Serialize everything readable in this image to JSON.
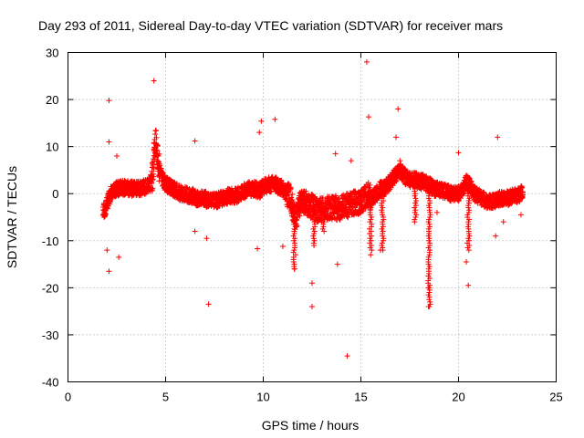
{
  "chart_data": {
    "type": "scatter",
    "title": "Day 293 of 2011, Sidereal Day-to-day VTEC variation (SDTVAR) for receiver mars",
    "xlabel": "GPS time / hours",
    "ylabel": "SDTVAR / TECUs",
    "xlim": [
      0,
      25
    ],
    "ylim": [
      -40,
      30
    ],
    "xticks": [
      0,
      5,
      10,
      15,
      20,
      25
    ],
    "yticks": [
      30,
      20,
      10,
      0,
      -10,
      -20,
      -30,
      -40
    ],
    "grid": true,
    "marker": "+",
    "color": "#ff0000",
    "series": [
      {
        "name": "SDTVAR",
        "x": [
          1.8,
          1.9,
          2.0,
          2.1,
          2.2,
          2.3,
          2.4,
          2.5,
          2.6,
          2.7,
          2.8,
          3.0,
          3.2,
          3.4,
          3.6,
          3.8,
          4.0,
          4.2,
          4.35,
          4.4,
          4.45,
          4.5,
          4.55,
          4.6,
          4.7,
          4.8,
          4.9,
          5.0,
          5.2,
          5.4,
          5.6,
          5.8,
          6.0,
          6.2,
          6.4,
          6.6,
          6.8,
          7.0,
          7.2,
          7.4,
          7.6,
          7.8,
          8.0,
          8.2,
          8.4,
          8.6,
          8.8,
          9.0,
          9.2,
          9.4,
          9.6,
          9.8,
          10.0,
          10.2,
          10.4,
          10.6,
          10.8,
          11.0,
          11.2,
          11.4,
          11.5,
          11.6,
          11.7,
          11.8,
          11.9,
          12.0,
          12.2,
          12.4,
          12.6,
          12.8,
          13.0,
          13.2,
          13.4,
          13.6,
          13.8,
          14.0,
          14.2,
          14.4,
          14.6,
          14.8,
          15.0,
          15.2,
          15.4,
          15.5,
          15.6,
          15.8,
          16.0,
          16.2,
          16.4,
          16.6,
          16.8,
          17.0,
          17.2,
          17.4,
          17.6,
          17.8,
          18.0,
          18.2,
          18.4,
          18.5,
          18.6,
          18.8,
          19.0,
          19.2,
          19.4,
          19.6,
          19.8,
          20.0,
          20.2,
          20.4,
          20.6,
          20.8,
          21.0,
          21.2,
          21.4,
          21.6,
          21.8,
          22.0,
          22.2,
          22.4,
          22.6,
          22.8,
          23.0,
          23.2,
          23.3
        ],
        "y": [
          -3,
          -4,
          -2,
          -1,
          0,
          0.5,
          0.8,
          1,
          1.2,
          1.2,
          1.3,
          1.2,
          1.1,
          1,
          1,
          1.2,
          1.5,
          2,
          4,
          8,
          10,
          11,
          9,
          7,
          5,
          3.5,
          2.5,
          2,
          1.5,
          1,
          0.5,
          0,
          0,
          -0.5,
          -0.5,
          -1,
          -1,
          -1,
          -1.5,
          -1.5,
          -1.5,
          -1,
          -1,
          -0.5,
          -0.5,
          -0.5,
          0,
          0.5,
          1,
          1,
          1,
          0.5,
          1.5,
          1.8,
          2,
          2,
          1.5,
          1,
          0,
          -1,
          -3,
          -5,
          -5,
          -3,
          -2,
          -2,
          -2,
          -2.5,
          -3,
          -3.5,
          -3.5,
          -3.5,
          -3,
          -3,
          -3,
          -3,
          -2.5,
          -2.5,
          -2,
          -2,
          -1.5,
          -1,
          0,
          -1,
          -1,
          0,
          1,
          1,
          2,
          3,
          4,
          5,
          4,
          3,
          3,
          3,
          2.5,
          2.5,
          2,
          2,
          1.5,
          1,
          1,
          0.5,
          0.5,
          0,
          0,
          0,
          1,
          2.5,
          1.5,
          0,
          -0.5,
          -1,
          -1.5,
          -1.5,
          -1.5,
          -1,
          -1,
          -1,
          -1,
          -0.5,
          -0.5,
          0,
          0
        ],
        "outliers": [
          [
            2.1,
            19.8
          ],
          [
            4.4,
            24
          ],
          [
            15.3,
            28
          ],
          [
            14.3,
            -34.5
          ],
          [
            7.2,
            -23.5
          ],
          [
            12.5,
            -24
          ],
          [
            2.1,
            -16.5
          ],
          [
            11.6,
            -16
          ],
          [
            18.5,
            -24
          ],
          [
            18.45,
            -20
          ],
          [
            20.5,
            -19.5
          ],
          [
            2.6,
            -13.5
          ],
          [
            15.4,
            16.3
          ],
          [
            16.9,
            18
          ],
          [
            22.0,
            12
          ],
          [
            10.6,
            15.8
          ],
          [
            9.9,
            15.4
          ],
          [
            6.5,
            11.2
          ],
          [
            20.0,
            8.7
          ],
          [
            13.7,
            8.5
          ],
          [
            14.5,
            7
          ],
          [
            16.8,
            12
          ],
          [
            17.0,
            7
          ],
          [
            2.1,
            11
          ],
          [
            2.5,
            8
          ],
          [
            9.8,
            13
          ],
          [
            12.5,
            -19
          ],
          [
            13.8,
            -15
          ],
          [
            9.7,
            -11.7
          ],
          [
            11.0,
            -11.2
          ],
          [
            7.1,
            -9.5
          ],
          [
            6.5,
            -8
          ],
          [
            2.0,
            -12
          ],
          [
            20.4,
            -14.5
          ],
          [
            15.5,
            -13
          ],
          [
            22.3,
            -6
          ],
          [
            23.2,
            -4.5
          ],
          [
            16.0,
            -12
          ],
          [
            18.9,
            -4
          ],
          [
            21.9,
            -9
          ]
        ],
        "dips": [
          [
            11.6,
            -16
          ],
          [
            12.6,
            -11
          ],
          [
            13.1,
            -8
          ],
          [
            15.5,
            -12
          ],
          [
            16.1,
            -12
          ],
          [
            17.8,
            -6
          ],
          [
            18.5,
            -24
          ],
          [
            20.5,
            -12
          ]
        ]
      }
    ]
  }
}
